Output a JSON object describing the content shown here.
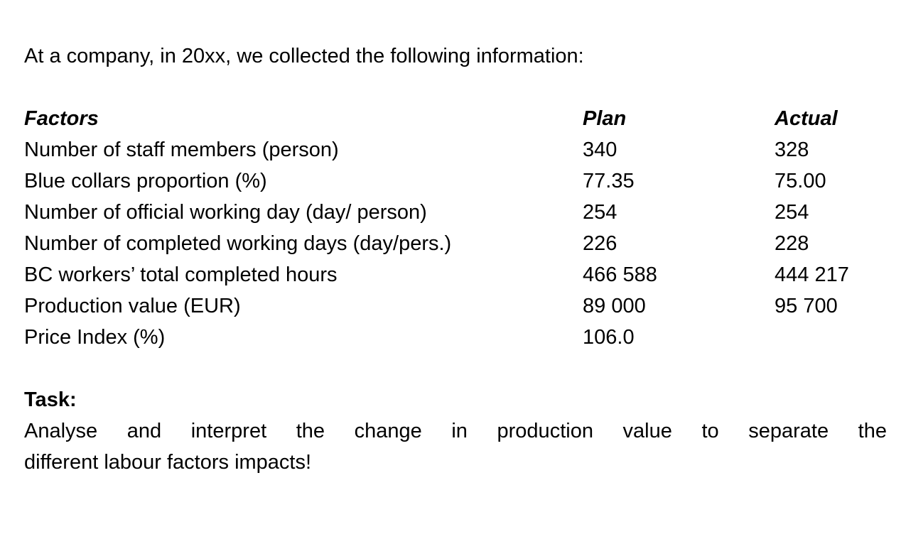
{
  "intro": "At a company, in 20xx, we collected the following information:",
  "table": {
    "headers": {
      "factor": "Factors",
      "plan": "Plan",
      "actual": "Actual"
    },
    "rows": [
      {
        "factor": "Number of staff members (person)",
        "plan": "340",
        "actual": "328"
      },
      {
        "factor": "Blue collars proportion (%)",
        "plan": "77.35",
        "actual": "75.00"
      },
      {
        "factor": "Number of official working day (day/ person)",
        "plan": "254",
        "actual": "254"
      },
      {
        "factor": "Number of completed working days (day/pers.)",
        "plan": "226",
        "actual": "228"
      },
      {
        "factor": "BC workers’ total completed hours",
        "plan": "466 588",
        "actual": "444 217"
      },
      {
        "factor": "Production value (EUR)",
        "plan": "89 000",
        "actual": "95 700"
      },
      {
        "factor": "Price Index (%)",
        "plan": "106.0",
        "actual": ""
      }
    ]
  },
  "task": {
    "heading": "Task:",
    "line1": "Analyse and interpret the change in production value to separate the",
    "line2": "different labour factors impacts!"
  },
  "colors": {
    "text": "#000000",
    "background": "#ffffff"
  }
}
